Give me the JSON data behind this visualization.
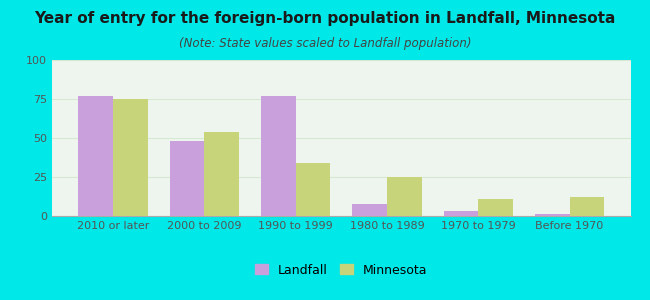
{
  "title": "Year of entry for the foreign-born population in Landfall, Minnesota",
  "subtitle": "(Note: State values scaled to Landfall population)",
  "categories": [
    "2010 or later",
    "2000 to 2009",
    "1990 to 1999",
    "1980 to 1989",
    "1970 to 1979",
    "Before 1970"
  ],
  "landfall_values": [
    77,
    48,
    77,
    8,
    3,
    1
  ],
  "minnesota_values": [
    75,
    54,
    34,
    25,
    11,
    12
  ],
  "landfall_color": "#c9a0dc",
  "minnesota_color": "#c8d47a",
  "background_outer": "#00e8e8",
  "background_chart": "#eef5ee",
  "ylim": [
    0,
    100
  ],
  "yticks": [
    0,
    25,
    50,
    75,
    100
  ],
  "bar_width": 0.38,
  "legend_labels": [
    "Landfall",
    "Minnesota"
  ],
  "grid_color": "#d4e8d4",
  "title_fontsize": 11,
  "subtitle_fontsize": 8.5,
  "axis_label_fontsize": 8,
  "legend_fontsize": 9
}
